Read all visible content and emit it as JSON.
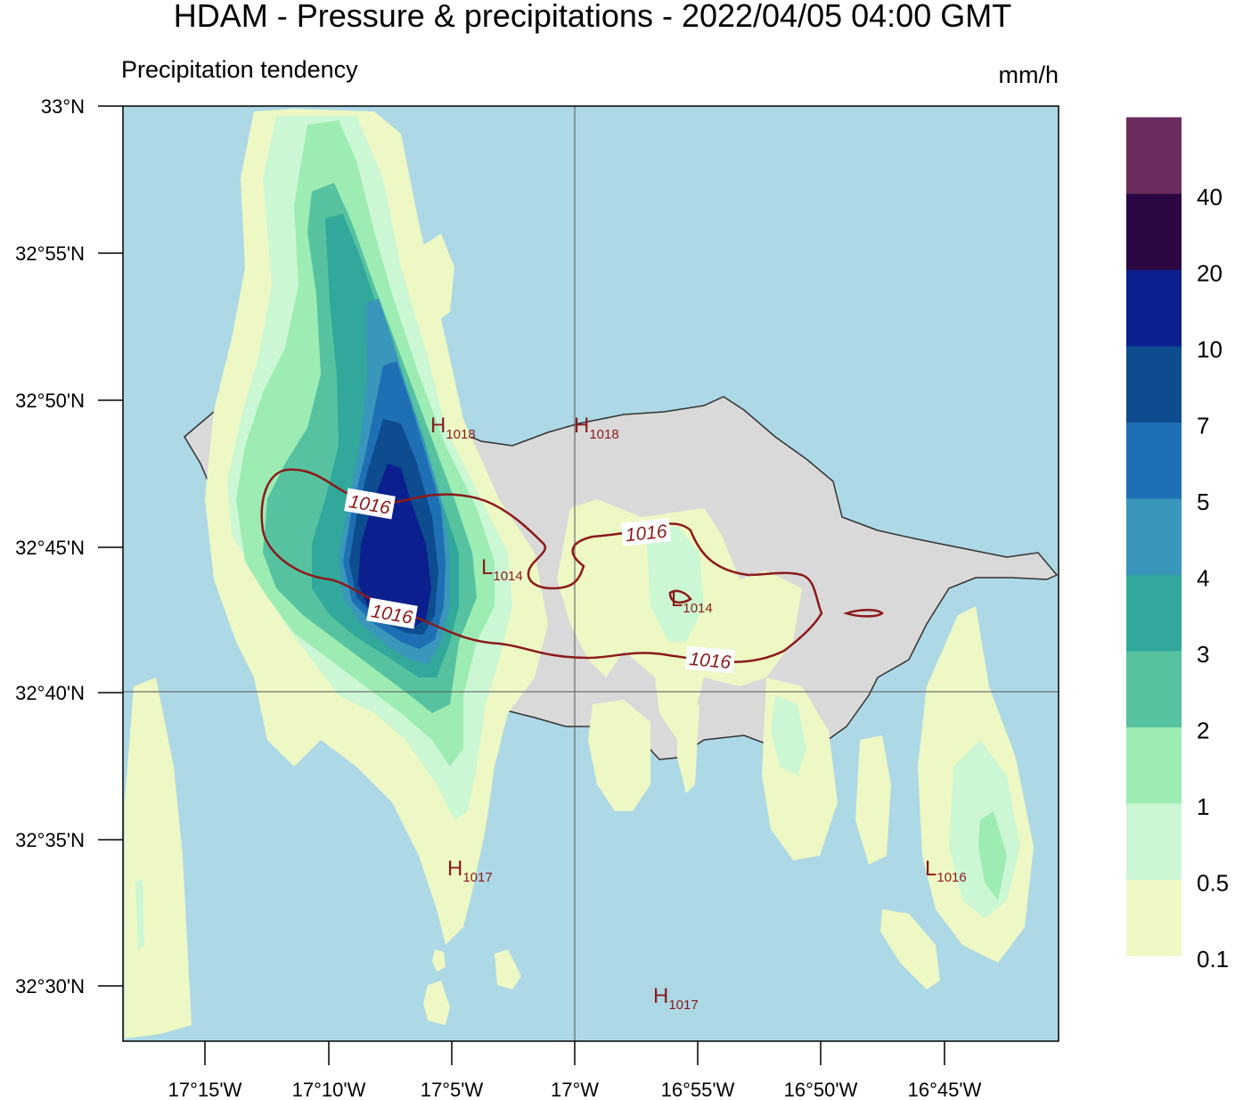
{
  "title": "HDAM - Pressure & precipitations  -  2022/04/05  04:00 GMT",
  "subtitle": "Precipitation tendency",
  "unit": "mm/h",
  "lat_labels": [
    "33°N",
    "32°55'N",
    "32°50'N",
    "32°45'N",
    "32°40'N",
    "32°35'N",
    "32°30'N"
  ],
  "lon_labels": [
    "17°15'W",
    "17°10'W",
    "17°5'W",
    "17°W",
    "16°55'W",
    "16°50'W",
    "16°45'W"
  ],
  "colorbar": {
    "levels": [
      "0.1",
      "0.5",
      "1",
      "2",
      "3",
      "4",
      "5",
      "7",
      "10",
      "20",
      "40"
    ],
    "colors": [
      "#eef8c4",
      "#ccf7d4",
      "#9cecb4",
      "#56c2a0",
      "#31a89b",
      "#3a96bb",
      "#1f6fb4",
      "#0d4c8f",
      "#0c1f8e",
      "#2b0744",
      "#6b2c5e"
    ]
  },
  "colors": {
    "sea": "#add8e6",
    "land": "#d9d9d9",
    "coast": "#333333",
    "isobar": "#8b1a1a"
  },
  "isobar_labels": [
    "1016",
    "1016",
    "1016",
    "1016"
  ],
  "pressure_centers": [
    {
      "letter": "H",
      "value": "1018"
    },
    {
      "letter": "H",
      "value": "1018"
    },
    {
      "letter": "L",
      "value": "1014"
    },
    {
      "letter": "L",
      "value": "1014"
    },
    {
      "letter": "H",
      "value": "1017"
    },
    {
      "letter": "L",
      "value": "1016"
    },
    {
      "letter": "H",
      "value": "1017"
    }
  ]
}
